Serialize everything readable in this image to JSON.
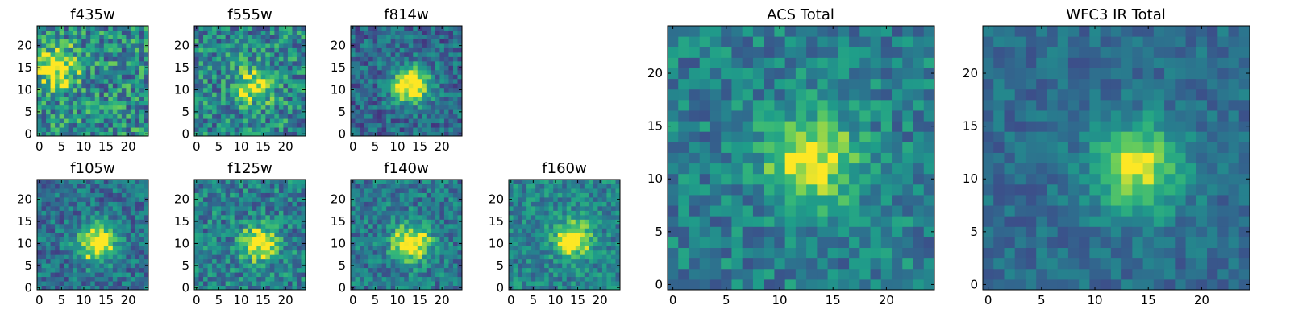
{
  "chart_data": [
    {
      "type": "heatmap",
      "title": "f435w",
      "xticks": [
        "0",
        "5",
        "10",
        "15",
        "20"
      ],
      "yticks": [
        "0",
        "5",
        "10",
        "15",
        "20"
      ],
      "grid_size": 25,
      "xlim": [
        0,
        24
      ],
      "ylim": [
        0,
        24
      ],
      "colormap": "viridis",
      "peak_pixel": [
        4,
        15
      ],
      "peak_level": 0.55,
      "noise_level": 0.32,
      "background_level": 0.55
    },
    {
      "type": "heatmap",
      "title": "f555w",
      "xticks": [
        "0",
        "5",
        "10",
        "15",
        "20"
      ],
      "yticks": [
        "0",
        "5",
        "10",
        "15",
        "20"
      ],
      "grid_size": 25,
      "xlim": [
        0,
        24
      ],
      "ylim": [
        0,
        24
      ],
      "colormap": "viridis",
      "peak_pixel": [
        13,
        11
      ],
      "peak_level": 0.45,
      "noise_level": 0.3,
      "background_level": 0.52
    },
    {
      "type": "heatmap",
      "title": "f814w",
      "xticks": [
        "0",
        "5",
        "10",
        "15",
        "20"
      ],
      "yticks": [
        "0",
        "5",
        "10",
        "15",
        "20"
      ],
      "grid_size": 25,
      "xlim": [
        0,
        24
      ],
      "ylim": [
        0,
        24
      ],
      "colormap": "viridis",
      "peak_pixel": [
        13,
        11
      ],
      "peak_level": 0.8,
      "noise_level": 0.22,
      "background_level": 0.38
    },
    {
      "type": "heatmap",
      "title": "f105w",
      "xticks": [
        "0",
        "5",
        "10",
        "15",
        "20"
      ],
      "yticks": [
        "0",
        "5",
        "10",
        "15",
        "20"
      ],
      "grid_size": 25,
      "xlim": [
        0,
        24
      ],
      "ylim": [
        0,
        24
      ],
      "colormap": "viridis",
      "peak_pixel": [
        13,
        10
      ],
      "peak_level": 0.75,
      "noise_level": 0.22,
      "background_level": 0.42
    },
    {
      "type": "heatmap",
      "title": "f125w",
      "xticks": [
        "0",
        "5",
        "10",
        "15",
        "20"
      ],
      "yticks": [
        "0",
        "5",
        "10",
        "15",
        "20"
      ],
      "grid_size": 25,
      "xlim": [
        0,
        24
      ],
      "ylim": [
        0,
        24
      ],
      "colormap": "viridis",
      "peak_pixel": [
        14,
        10
      ],
      "peak_level": 0.6,
      "noise_level": 0.25,
      "background_level": 0.48
    },
    {
      "type": "heatmap",
      "title": "f140w",
      "xticks": [
        "0",
        "5",
        "10",
        "15",
        "20"
      ],
      "yticks": [
        "0",
        "5",
        "10",
        "15",
        "20"
      ],
      "grid_size": 25,
      "xlim": [
        0,
        24
      ],
      "ylim": [
        0,
        24
      ],
      "colormap": "viridis",
      "peak_pixel": [
        13,
        10
      ],
      "peak_level": 0.75,
      "noise_level": 0.22,
      "background_level": 0.45
    },
    {
      "type": "heatmap",
      "title": "f160w",
      "xticks": [
        "0",
        "5",
        "10",
        "15",
        "20"
      ],
      "yticks": [
        "0",
        "5",
        "10",
        "15",
        "20"
      ],
      "grid_size": 25,
      "xlim": [
        0,
        24
      ],
      "ylim": [
        0,
        24
      ],
      "colormap": "viridis",
      "peak_pixel": [
        14,
        11
      ],
      "peak_level": 0.6,
      "noise_level": 0.2,
      "background_level": 0.5
    },
    {
      "type": "heatmap",
      "title": "ACS Total",
      "xticks": [
        "0",
        "5",
        "10",
        "15",
        "20"
      ],
      "yticks": [
        "0",
        "5",
        "10",
        "15",
        "20"
      ],
      "grid_size": 25,
      "xlim": [
        0,
        24
      ],
      "ylim": [
        0,
        24
      ],
      "colormap": "viridis",
      "peak_pixel": [
        13,
        12
      ],
      "peak_level": 0.6,
      "noise_level": 0.2,
      "background_level": 0.48
    },
    {
      "type": "heatmap",
      "title": "WFC3 IR Total",
      "xticks": [
        "0",
        "5",
        "10",
        "15",
        "20"
      ],
      "yticks": [
        "0",
        "5",
        "10",
        "15",
        "20"
      ],
      "grid_size": 25,
      "xlim": [
        0,
        24
      ],
      "ylim": [
        0,
        24
      ],
      "colormap": "viridis",
      "peak_pixel": [
        14,
        11
      ],
      "peak_level": 0.6,
      "noise_level": 0.13,
      "background_level": 0.4
    }
  ]
}
